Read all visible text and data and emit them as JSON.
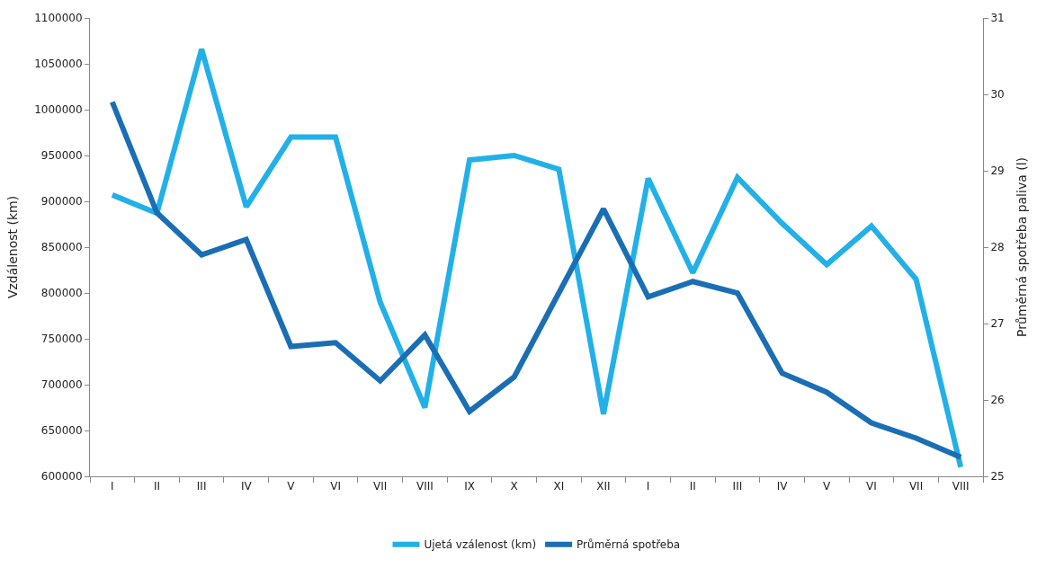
{
  "chart_data": {
    "type": "line",
    "ylabel": "Vzdálenost (km)",
    "y2label": "Průměrná spotřeba paliva (l)",
    "categories": [
      "I",
      "II",
      "III",
      "IV",
      "V",
      "VI",
      "VII",
      "VIII",
      "IX",
      "X",
      "XI",
      "XII",
      "I",
      "II",
      "III",
      "IV",
      "V",
      "VI",
      "VII",
      "VIII"
    ],
    "series": [
      {
        "name": "Ujetá vzálenost (km)",
        "color": "#22b0e8",
        "values": [
          907000,
          887000,
          1066000,
          894000,
          970000,
          970000,
          790000,
          675000,
          945000,
          950000,
          935000,
          668000,
          925000,
          822000,
          926000,
          876000,
          831000,
          873000,
          815000,
          610000
        ]
      },
      {
        "name": "Průměrná spotřeba",
        "color": "#1a6eb4",
        "axis": "y2",
        "values": [
          29.9,
          28.45,
          27.9,
          28.1,
          26.7,
          26.75,
          26.25,
          26.85,
          25.85,
          26.3,
          27.4,
          28.5,
          27.35,
          27.55,
          27.4,
          26.35,
          26.1,
          25.7,
          25.5,
          25.25
        ]
      }
    ],
    "ylim": [
      600000,
      1100000
    ],
    "yticks": [
      600000,
      650000,
      700000,
      750000,
      800000,
      850000,
      900000,
      950000,
      1000000,
      1050000,
      1100000
    ],
    "y2lim": [
      25,
      31
    ],
    "y2ticks": [
      25,
      26,
      27,
      28,
      29,
      30,
      31
    ],
    "legend": "bottom",
    "marker": "none",
    "line_style": "solid"
  }
}
